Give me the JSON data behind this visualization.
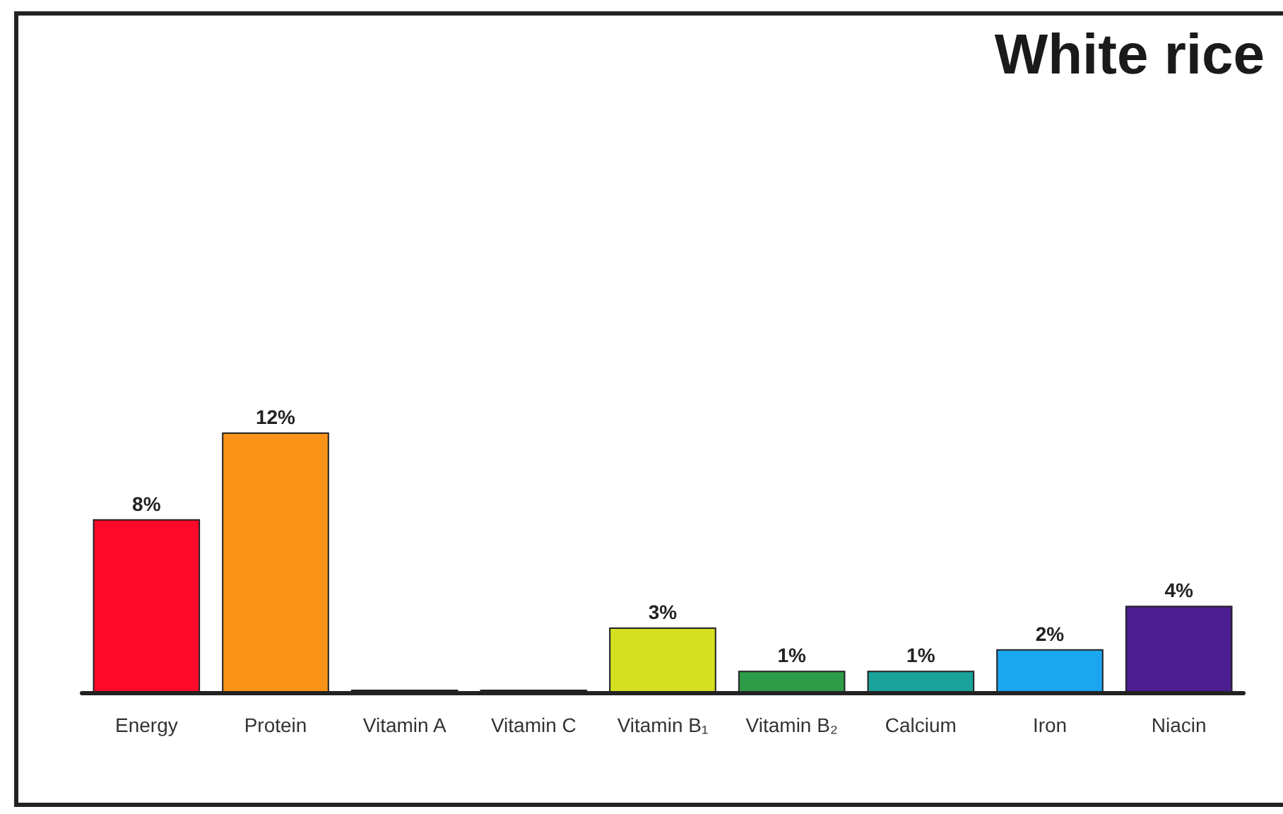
{
  "chart_data": {
    "type": "bar",
    "title": "White rice",
    "categories": [
      "Energy",
      "Protein",
      "Vitamin A",
      "Vitamin C",
      "Vitamin B₁",
      "Vitamin B₂",
      "Calcium",
      "Iron",
      "Niacin"
    ],
    "values": [
      8,
      12,
      0,
      0,
      3,
      1,
      1,
      2,
      4
    ],
    "value_labels": [
      "8%",
      "12%",
      null,
      null,
      "3%",
      "1%",
      "1%",
      "2%",
      "4%"
    ],
    "colors": [
      "#ff0a2a",
      "#f99419",
      "#9a9a9a",
      "#9a9a9a",
      "#d4e021",
      "#2e9b48",
      "#1aa39a",
      "#1ba6f0",
      "#4b1d8f"
    ],
    "ylim": [
      0,
      12
    ]
  }
}
